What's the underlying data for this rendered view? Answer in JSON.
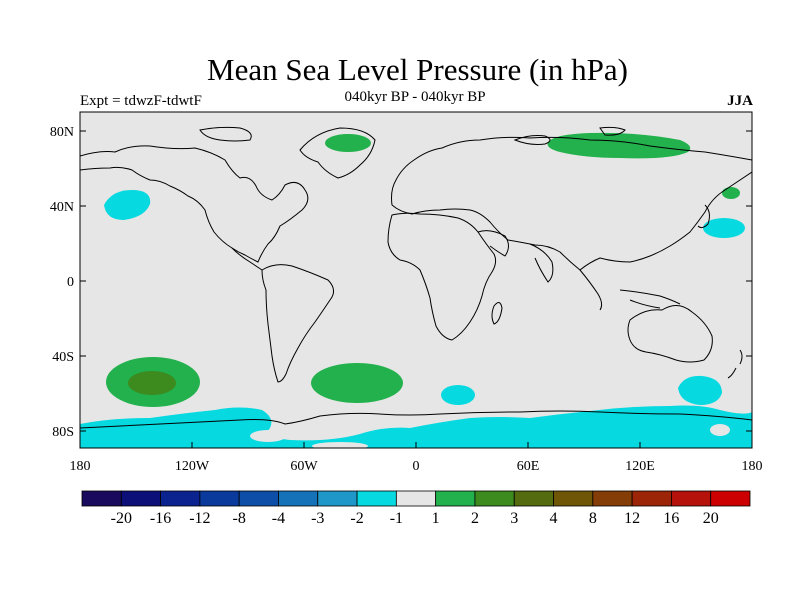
{
  "header": {
    "title": "Mean Sea Level Pressure (in hPa)",
    "subtitle": "040kyr BP - 040kyr BP",
    "left_label": "Expt = tdwzF-tdwtF",
    "right_label": "JJA"
  },
  "map": {
    "projection": "cylindrical-equidistant",
    "lat_ticks": [
      "80N",
      "40N",
      "0",
      "40S",
      "80S"
    ],
    "lon_ticks": [
      "180",
      "120W",
      "60W",
      "0",
      "60E",
      "120E",
      "180"
    ],
    "background_color": "#e6e6e6",
    "coastline_color": "#000000"
  },
  "colorbar": {
    "colors": [
      "#1a0a5e",
      "#0c0f78",
      "#0b238f",
      "#0a3a9c",
      "#0d4fa8",
      "#1672b8",
      "#1f97c8",
      "#06d9e0",
      "#e6e6e6",
      "#22b14c",
      "#3d8a1f",
      "#556b0f",
      "#6e5606",
      "#843d06",
      "#9c2508",
      "#b5120c",
      "#cc0000"
    ],
    "labels": [
      "-20",
      "-16",
      "-12",
      "-8",
      "-4",
      "-3",
      "-2",
      "-1",
      "1",
      "2",
      "3",
      "4",
      "8",
      "12",
      "16",
      "20"
    ]
  },
  "legend_colors": {
    "cyan": "#06d9e0",
    "green": "#22b14c",
    "dark_green": "#3d8a1f",
    "grey": "#e6e6e6"
  }
}
